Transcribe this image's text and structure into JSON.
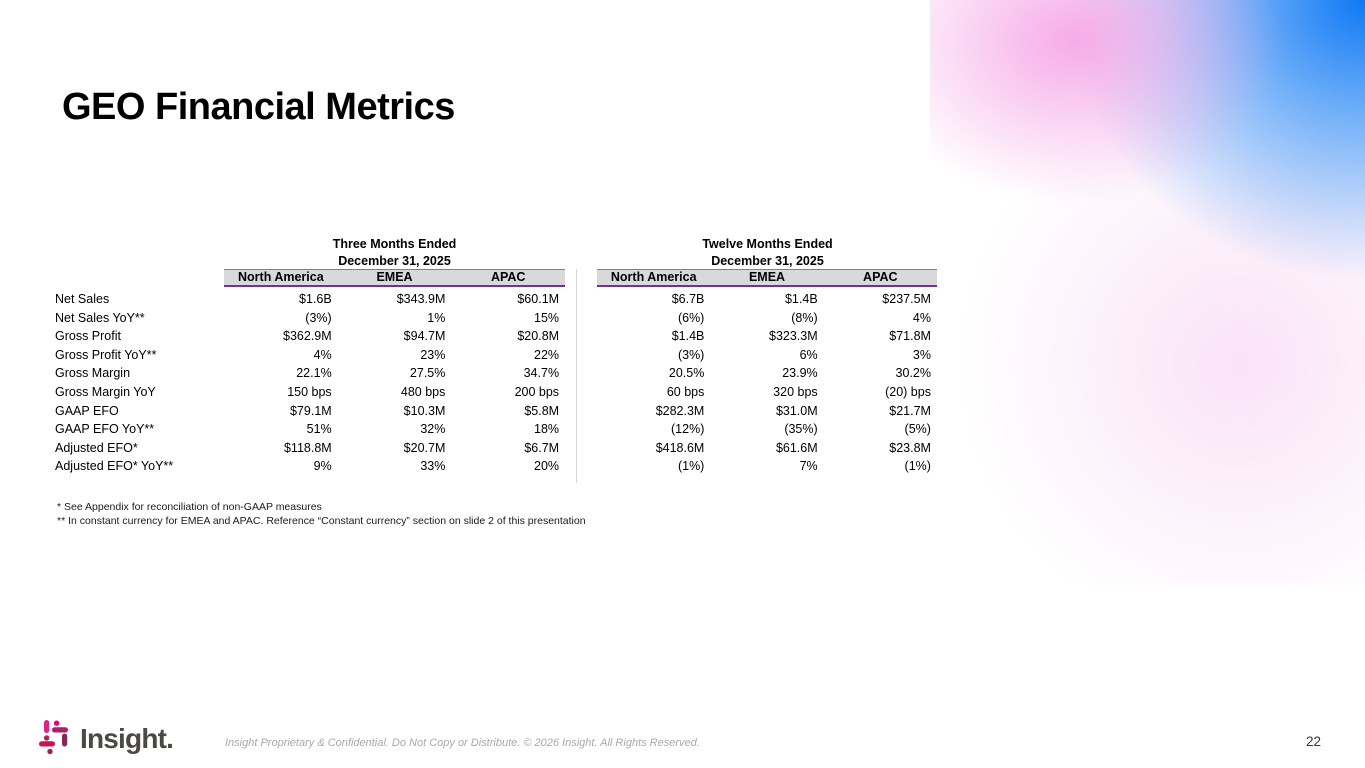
{
  "title": "GEO Financial Metrics",
  "table": {
    "left_group": {
      "line1": "Three Months Ended",
      "line2": "December 31, 2025"
    },
    "right_group": {
      "line1": "Twelve Months Ended",
      "line2": "December 31, 2025"
    },
    "columns": [
      "North America",
      "EMEA",
      "APAC"
    ],
    "rows": [
      {
        "label": "Net Sales",
        "three_months": [
          "$1.6B",
          "$343.9M",
          "$60.1M"
        ],
        "twelve_months": [
          "$6.7B",
          "$1.4B",
          "$237.5M"
        ]
      },
      {
        "label": "Net Sales YoY**",
        "three_months": [
          "(3%)",
          "1%",
          "15%"
        ],
        "twelve_months": [
          "(6%)",
          "(8%)",
          "4%"
        ]
      },
      {
        "label": "Gross Profit",
        "three_months": [
          "$362.9M",
          "$94.7M",
          "$20.8M"
        ],
        "twelve_months": [
          "$1.4B",
          "$323.3M",
          "$71.8M"
        ]
      },
      {
        "label": "Gross Profit YoY**",
        "three_months": [
          "4%",
          "23%",
          "22%"
        ],
        "twelve_months": [
          "(3%)",
          "6%",
          "3%"
        ]
      },
      {
        "label": "Gross Margin",
        "three_months": [
          "22.1%",
          "27.5%",
          "34.7%"
        ],
        "twelve_months": [
          "20.5%",
          "23.9%",
          "30.2%"
        ]
      },
      {
        "label": "Gross Margin YoY",
        "three_months": [
          "150 bps",
          "480 bps",
          "200 bps"
        ],
        "twelve_months": [
          "60 bps",
          "320 bps",
          "(20) bps"
        ]
      },
      {
        "label": "GAAP EFO",
        "three_months": [
          "$79.1M",
          "$10.3M",
          "$5.8M"
        ],
        "twelve_months": [
          "$282.3M",
          "$31.0M",
          "$21.7M"
        ]
      },
      {
        "label": "GAAP EFO YoY**",
        "three_months": [
          "51%",
          "32%",
          "18%"
        ],
        "twelve_months": [
          "(12%)",
          "(35%)",
          "(5%)"
        ]
      },
      {
        "label": "Adjusted EFO*",
        "three_months": [
          "$118.8M",
          "$20.7M",
          "$6.7M"
        ],
        "twelve_months": [
          "$418.6M",
          "$61.6M",
          "$23.8M"
        ]
      },
      {
        "label": "Adjusted EFO* YoY**",
        "three_months": [
          "9%",
          "33%",
          "20%"
        ],
        "twelve_months": [
          "(1%)",
          "7%",
          "(1%)"
        ]
      }
    ]
  },
  "footnotes": [
    "* See Appendix for reconciliation of non-GAAP measures",
    "** In constant currency for EMEA and APAC. Reference “Constant currency” section on slide 2 of this presentation"
  ],
  "footer": {
    "logo_text": "Insight.",
    "confidential": "Insight Proprietary & Confidential. Do Not Copy or Distribute. © 2026 Insight. All Rights Reserved.",
    "page_number": "22"
  },
  "colors": {
    "accent_purple": "#7030a0",
    "header_bg": "#d9d9d9",
    "logo_magenta": "#d6006e",
    "gradient_blue": "#0b79f5",
    "gradient_pink": "#f6a6e7"
  }
}
